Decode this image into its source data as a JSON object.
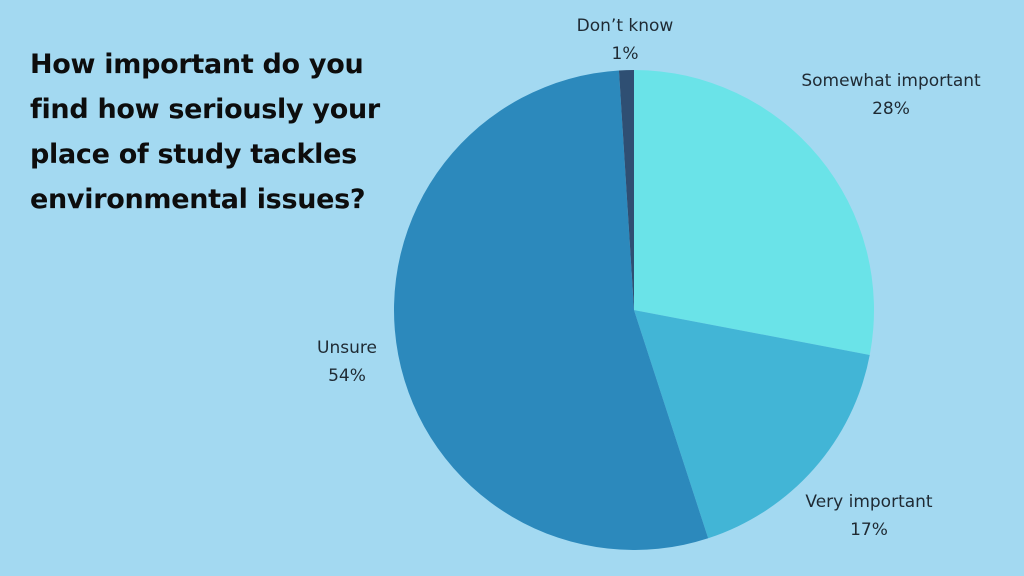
{
  "title_lines": [
    "How important do you",
    "find how seriously your",
    "place of study tackles",
    "environmental issues?"
  ],
  "chart_data": {
    "type": "pie",
    "title": "How important do you find how seriously your place of study tackles environmental issues?",
    "slices": [
      {
        "label": "Somewhat important",
        "value": 28,
        "display": "28%",
        "color": "#6ae3e8"
      },
      {
        "label": "Very important",
        "value": 17,
        "display": "17%",
        "color": "#42b5d6"
      },
      {
        "label": "Unsure",
        "value": 54,
        "display": "54%",
        "color": "#2c89bc"
      },
      {
        "label": "Don’t know",
        "value": 1,
        "display": "1%",
        "color": "#2f4f73"
      }
    ],
    "start": "12 o'clock",
    "direction": "clockwise"
  }
}
